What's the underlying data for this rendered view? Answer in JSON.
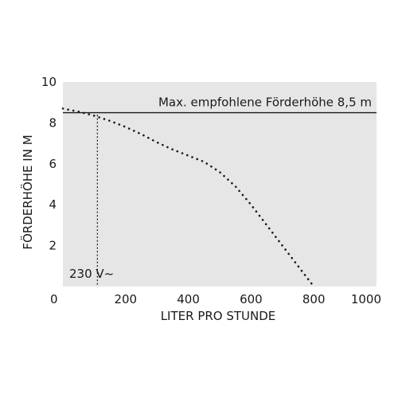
{
  "chart_data": {
    "type": "line",
    "title": "",
    "xlabel": "LITER PRO STUNDE",
    "ylabel": "FÖRDERHÖHE IN M",
    "xlim": [
      0,
      1000
    ],
    "ylim": [
      0,
      10
    ],
    "x_ticks": [
      0,
      200,
      400,
      600,
      800,
      1000
    ],
    "y_ticks": [
      2,
      4,
      6,
      8,
      10
    ],
    "grid": false,
    "series": [
      {
        "name": "230 V~",
        "style": "dotted",
        "x": [
          0,
          50,
          100,
          150,
          200,
          250,
          300,
          350,
          400,
          450,
          500,
          550,
          600,
          650,
          700,
          750,
          800
        ],
        "y": [
          8.7,
          8.55,
          8.35,
          8.1,
          7.8,
          7.45,
          7.05,
          6.7,
          6.4,
          6.1,
          5.6,
          4.9,
          4.0,
          3.0,
          2.0,
          1.0,
          0.0
        ]
      }
    ],
    "reference_line": {
      "label": "Max. empfohlene Förderhöhe 8,5 m",
      "y": 8.5
    },
    "marker_line": {
      "x": 110,
      "y_top": 8.4
    },
    "colors": {
      "plot_background": "#e6e6e6",
      "line": "#1a1a1a",
      "text": "#1a1a1a"
    }
  }
}
